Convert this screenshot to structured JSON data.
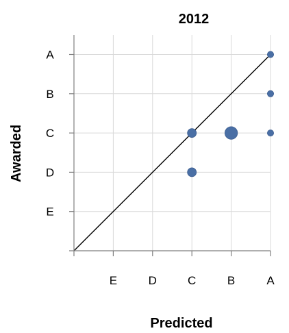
{
  "chart_data": {
    "type": "scatter",
    "title": "2012",
    "xlabel": "Predicted",
    "ylabel": "Awarded",
    "x_ticks": [
      "E",
      "D",
      "C",
      "B",
      "A"
    ],
    "y_ticks": [
      "A",
      "B",
      "C",
      "D",
      "E"
    ],
    "grade_scale": {
      "E": 1,
      "D": 2,
      "C": 3,
      "B": 4,
      "A": 5
    },
    "xlim": [
      0,
      5
    ],
    "ylim": [
      0,
      5
    ],
    "grid": true,
    "reference_line": {
      "from": [
        0,
        0
      ],
      "to": [
        5,
        5
      ]
    },
    "points": [
      {
        "predicted": "A",
        "awarded": "A",
        "size": 1
      },
      {
        "predicted": "A",
        "awarded": "B",
        "size": 1
      },
      {
        "predicted": "A",
        "awarded": "C",
        "size": 1
      },
      {
        "predicted": "C",
        "awarded": "C",
        "size": 2
      },
      {
        "predicted": "B",
        "awarded": "C",
        "size": 4
      },
      {
        "predicted": "C",
        "awarded": "D",
        "size": 2
      }
    ],
    "colors": {
      "marker": "#4a6fa5",
      "marker_edge": "#3c5d8f"
    }
  }
}
